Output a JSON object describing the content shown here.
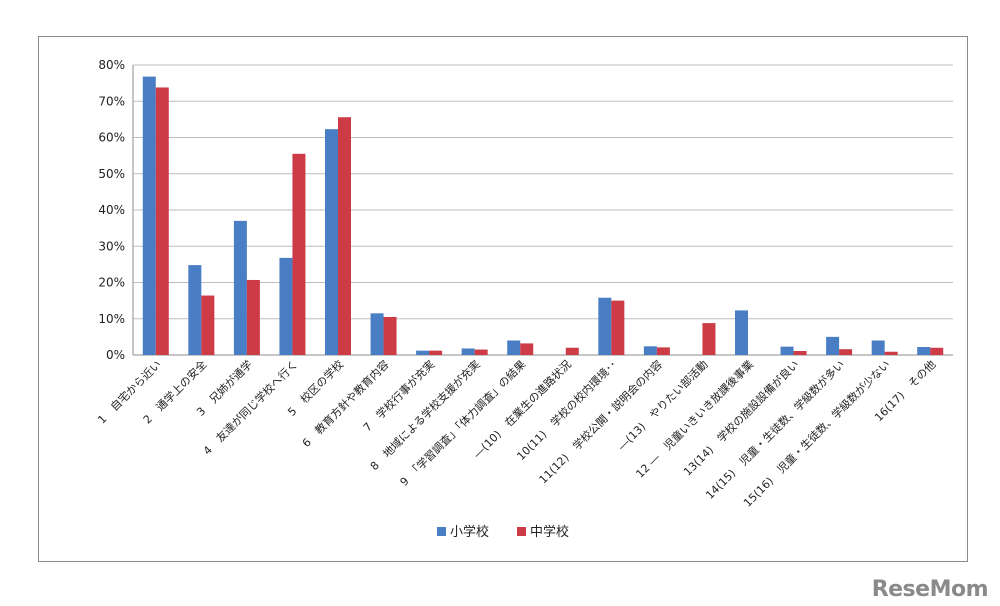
{
  "watermark": "ReseMom",
  "chart_data": {
    "type": "bar",
    "title": "",
    "xlabel": "",
    "ylabel": "",
    "ylim": [
      0,
      80
    ],
    "y_ticks": [
      "0%",
      "10%",
      "20%",
      "30%",
      "40%",
      "50%",
      "60%",
      "70%",
      "80%"
    ],
    "grid": true,
    "legend_position": "bottom",
    "categories": [
      "1　自宅から近い",
      "2　通学上の安全",
      "3　兄姉が通学",
      "4　友達が同じ学校へ行く",
      "5　校区の学校",
      "6　教育方針や教育内容",
      "7　学校行事が充実",
      "8　地域による学校支援が充実",
      "9　「学習調査」「体力調査」の結果",
      "―(10)　在業生の進路状況",
      "10(11)　学校の校内環境･･",
      "11(12)　学校公開・説明会の内容",
      "―(13)　やりたい部活動",
      "12 ―　児童いきいき放課後事業",
      "13(14)　学校の施設設備が良い",
      "14(15)　児童・生徒数、学級数が多い",
      "15(16)　児童・生徒数、学級数が少ない",
      "16(17)　その他"
    ],
    "series": [
      {
        "name": "小学校",
        "color": "#4a7ec4",
        "values": [
          76.8,
          24.8,
          37.0,
          26.8,
          62.3,
          11.5,
          1.2,
          1.8,
          4.0,
          null,
          15.8,
          2.4,
          null,
          12.3,
          2.3,
          5.0,
          4.0,
          2.2
        ]
      },
      {
        "name": "中学校",
        "color": "#cc3b46",
        "values": [
          73.8,
          16.4,
          20.7,
          55.5,
          65.6,
          10.5,
          1.2,
          1.5,
          3.2,
          2.0,
          15.0,
          2.1,
          8.8,
          null,
          1.1,
          1.6,
          0.9,
          2.0
        ]
      }
    ]
  }
}
